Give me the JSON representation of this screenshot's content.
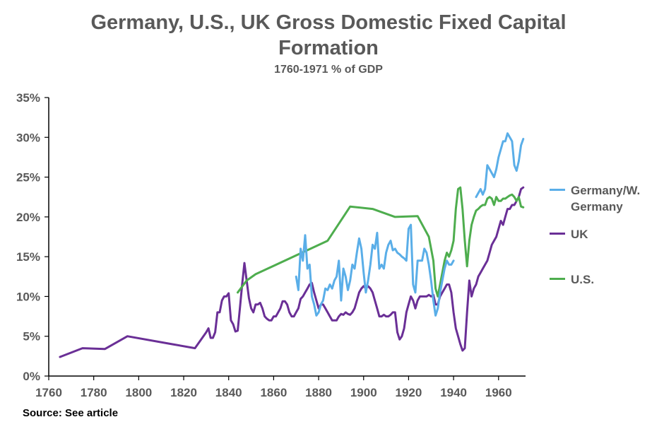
{
  "chart_data": {
    "type": "line",
    "title_line1": "Germany, U.S., UK Gross Domestic Fixed Capital",
    "title_line2": "Formation",
    "subtitle": "1760-1971 % of GDP",
    "xlabel": "",
    "ylabel": "",
    "xlim": [
      1760,
      1972
    ],
    "ylim": [
      0,
      35
    ],
    "x_ticks": [
      1760,
      1780,
      1800,
      1820,
      1840,
      1860,
      1880,
      1900,
      1920,
      1940,
      1960
    ],
    "y_ticks": [
      0,
      5,
      10,
      15,
      20,
      25,
      30,
      35
    ],
    "y_tick_labels": [
      "0%",
      "5%",
      "10%",
      "15%",
      "20%",
      "25%",
      "30%",
      "35%"
    ],
    "legend": [
      {
        "line1": "Germany/W.",
        "line2": "Germany",
        "color": "#5aaee8"
      },
      {
        "line1": "UK",
        "line2": "",
        "color": "#6a2f96"
      },
      {
        "line1": "U.S.",
        "line2": "",
        "color": "#4ead4e"
      }
    ],
    "source": "Source: See article",
    "series": [
      {
        "name": "UK",
        "color": "#6a2f96",
        "points": [
          [
            1765,
            2.4
          ],
          [
            1775,
            3.5
          ],
          [
            1785,
            3.4
          ],
          [
            1795,
            5.0
          ],
          [
            1815,
            4.0
          ],
          [
            1825,
            3.5
          ],
          [
            1830,
            5.5
          ],
          [
            1831,
            6.0
          ],
          [
            1832,
            4.8
          ],
          [
            1833,
            4.8
          ],
          [
            1834,
            5.5
          ],
          [
            1835,
            8.0
          ],
          [
            1836,
            8.0
          ],
          [
            1837,
            9.5
          ],
          [
            1838,
            10.0
          ],
          [
            1839,
            10.0
          ],
          [
            1840,
            10.4
          ],
          [
            1841,
            7.0
          ],
          [
            1842,
            6.5
          ],
          [
            1843,
            5.6
          ],
          [
            1844,
            5.7
          ],
          [
            1845,
            8.5
          ],
          [
            1846,
            11.5
          ],
          [
            1847,
            14.2
          ],
          [
            1848,
            12.0
          ],
          [
            1849,
            9.8
          ],
          [
            1850,
            8.5
          ],
          [
            1851,
            8.0
          ],
          [
            1852,
            9.0
          ],
          [
            1853,
            9.0
          ],
          [
            1854,
            9.2
          ],
          [
            1855,
            8.5
          ],
          [
            1856,
            7.5
          ],
          [
            1857,
            7.2
          ],
          [
            1858,
            7.0
          ],
          [
            1859,
            7.0
          ],
          [
            1860,
            7.5
          ],
          [
            1861,
            7.5
          ],
          [
            1862,
            8.0
          ],
          [
            1863,
            8.5
          ],
          [
            1864,
            9.4
          ],
          [
            1865,
            9.4
          ],
          [
            1866,
            9.0
          ],
          [
            1867,
            8.0
          ],
          [
            1868,
            7.5
          ],
          [
            1869,
            7.5
          ],
          [
            1870,
            8.0
          ],
          [
            1871,
            8.5
          ],
          [
            1872,
            9.7
          ],
          [
            1873,
            10.0
          ],
          [
            1874,
            10.5
          ],
          [
            1875,
            11.0
          ],
          [
            1876,
            11.5
          ],
          [
            1877,
            11.7
          ],
          [
            1878,
            10.5
          ],
          [
            1879,
            9.5
          ],
          [
            1880,
            8.5
          ],
          [
            1881,
            9.0
          ],
          [
            1882,
            9.0
          ],
          [
            1883,
            8.5
          ],
          [
            1884,
            8.0
          ],
          [
            1885,
            7.5
          ],
          [
            1886,
            7.0
          ],
          [
            1887,
            7.0
          ],
          [
            1888,
            7.0
          ],
          [
            1889,
            7.5
          ],
          [
            1890,
            7.8
          ],
          [
            1891,
            7.7
          ],
          [
            1892,
            8.0
          ],
          [
            1893,
            7.8
          ],
          [
            1894,
            7.7
          ],
          [
            1895,
            8.0
          ],
          [
            1896,
            8.5
          ],
          [
            1897,
            9.5
          ],
          [
            1898,
            10.5
          ],
          [
            1899,
            11.0
          ],
          [
            1900,
            11.3
          ],
          [
            1901,
            11.0
          ],
          [
            1902,
            11.3
          ],
          [
            1903,
            11.0
          ],
          [
            1904,
            10.5
          ],
          [
            1905,
            9.5
          ],
          [
            1906,
            8.5
          ],
          [
            1907,
            7.5
          ],
          [
            1908,
            7.5
          ],
          [
            1909,
            7.7
          ],
          [
            1910,
            7.5
          ],
          [
            1911,
            7.5
          ],
          [
            1912,
            7.7
          ],
          [
            1913,
            8.0
          ],
          [
            1914,
            8.0
          ],
          [
            1915,
            5.5
          ],
          [
            1916,
            4.6
          ],
          [
            1917,
            5.0
          ],
          [
            1918,
            6.0
          ],
          [
            1919,
            8.0
          ],
          [
            1920,
            9.0
          ],
          [
            1921,
            10.0
          ],
          [
            1922,
            9.5
          ],
          [
            1923,
            8.5
          ],
          [
            1924,
            9.5
          ],
          [
            1925,
            10.0
          ],
          [
            1926,
            10.0
          ],
          [
            1927,
            10.0
          ],
          [
            1928,
            10.0
          ],
          [
            1929,
            10.2
          ],
          [
            1930,
            10.0
          ],
          [
            1931,
            10.2
          ],
          [
            1932,
            9.0
          ],
          [
            1933,
            9.0
          ],
          [
            1934,
            10.0
          ],
          [
            1935,
            10.5
          ],
          [
            1936,
            11.0
          ],
          [
            1937,
            11.5
          ],
          [
            1938,
            11.5
          ],
          [
            1939,
            10.5
          ],
          [
            1940,
            8.0
          ],
          [
            1941,
            6.0
          ],
          [
            1942,
            5.0
          ],
          [
            1943,
            4.0
          ],
          [
            1944,
            3.2
          ],
          [
            1945,
            3.5
          ],
          [
            1946,
            8.0
          ],
          [
            1947,
            12.0
          ],
          [
            1948,
            10.0
          ],
          [
            1949,
            11.0
          ],
          [
            1950,
            11.5
          ],
          [
            1951,
            12.5
          ],
          [
            1952,
            13.0
          ],
          [
            1953,
            13.5
          ],
          [
            1954,
            14.0
          ],
          [
            1955,
            14.5
          ],
          [
            1956,
            15.5
          ],
          [
            1957,
            16.5
          ],
          [
            1958,
            17.0
          ],
          [
            1959,
            17.5
          ],
          [
            1960,
            18.5
          ],
          [
            1961,
            19.5
          ],
          [
            1962,
            19.0
          ],
          [
            1963,
            20.0
          ],
          [
            1964,
            21.0
          ],
          [
            1965,
            21.0
          ],
          [
            1966,
            21.5
          ],
          [
            1967,
            21.5
          ],
          [
            1968,
            22.0
          ],
          [
            1969,
            22.5
          ],
          [
            1970,
            23.5
          ],
          [
            1971,
            23.7
          ]
        ]
      },
      {
        "name": "U.S.",
        "color": "#4ead4e",
        "points": [
          [
            1844,
            10.5
          ],
          [
            1848,
            12.0
          ],
          [
            1852,
            12.8
          ],
          [
            1884,
            17.0
          ],
          [
            1894,
            21.3
          ],
          [
            1904,
            21.0
          ],
          [
            1914,
            20.0
          ],
          [
            1924,
            20.1
          ],
          [
            1929,
            17.5
          ],
          [
            1931,
            14.5
          ],
          [
            1932,
            11.0
          ],
          [
            1933,
            10.0
          ],
          [
            1934,
            11.5
          ],
          [
            1935,
            13.0
          ],
          [
            1936,
            14.5
          ],
          [
            1937,
            15.5
          ],
          [
            1938,
            15.0
          ],
          [
            1939,
            15.8
          ],
          [
            1940,
            17.0
          ],
          [
            1941,
            21.0
          ],
          [
            1942,
            23.5
          ],
          [
            1943,
            23.7
          ],
          [
            1944,
            21.0
          ],
          [
            1945,
            17.0
          ],
          [
            1946,
            13.8
          ],
          [
            1947,
            17.0
          ],
          [
            1948,
            19.0
          ],
          [
            1949,
            20.0
          ],
          [
            1950,
            20.8
          ],
          [
            1951,
            21.0
          ],
          [
            1952,
            21.3
          ],
          [
            1953,
            21.5
          ],
          [
            1954,
            21.5
          ],
          [
            1955,
            22.3
          ],
          [
            1956,
            22.5
          ],
          [
            1957,
            22.3
          ],
          [
            1958,
            21.5
          ],
          [
            1959,
            22.5
          ],
          [
            1960,
            22.0
          ],
          [
            1961,
            22.0
          ],
          [
            1962,
            22.3
          ],
          [
            1963,
            22.3
          ],
          [
            1964,
            22.5
          ],
          [
            1965,
            22.7
          ],
          [
            1966,
            22.8
          ],
          [
            1967,
            22.5
          ],
          [
            1968,
            22.0
          ],
          [
            1969,
            22.5
          ],
          [
            1970,
            21.3
          ],
          [
            1971,
            21.2
          ]
        ]
      },
      {
        "name": "Germany/W. Germany",
        "color": "#5aaee8",
        "points": [
          [
            1870,
            12.5
          ],
          [
            1871,
            10.8
          ],
          [
            1872,
            16.0
          ],
          [
            1873,
            14.5
          ],
          [
            1874,
            17.7
          ],
          [
            1875,
            13.5
          ],
          [
            1876,
            14.0
          ],
          [
            1877,
            10.0
          ],
          [
            1878,
            9.0
          ],
          [
            1879,
            7.6
          ],
          [
            1880,
            8.0
          ],
          [
            1881,
            9.0
          ],
          [
            1882,
            9.5
          ],
          [
            1883,
            11.0
          ],
          [
            1884,
            10.8
          ],
          [
            1885,
            11.5
          ],
          [
            1886,
            11.0
          ],
          [
            1887,
            12.0
          ],
          [
            1888,
            12.5
          ],
          [
            1889,
            14.5
          ],
          [
            1890,
            9.5
          ],
          [
            1891,
            13.5
          ],
          [
            1892,
            12.5
          ],
          [
            1893,
            10.8
          ],
          [
            1894,
            12.0
          ],
          [
            1895,
            14.0
          ],
          [
            1896,
            13.5
          ],
          [
            1897,
            15.5
          ],
          [
            1898,
            17.3
          ],
          [
            1899,
            16.0
          ],
          [
            1900,
            13.0
          ],
          [
            1901,
            10.5
          ],
          [
            1902,
            12.0
          ],
          [
            1903,
            14.0
          ],
          [
            1904,
            16.5
          ],
          [
            1905,
            16.0
          ],
          [
            1906,
            18.0
          ],
          [
            1907,
            13.5
          ],
          [
            1908,
            14.0
          ],
          [
            1909,
            13.5
          ],
          [
            1910,
            15.5
          ],
          [
            1911,
            16.5
          ],
          [
            1912,
            17.0
          ],
          [
            1913,
            15.8
          ],
          [
            1914,
            16.0
          ],
          [
            1915,
            15.5
          ],
          [
            1916,
            15.3
          ],
          [
            1917,
            15.0
          ],
          [
            1918,
            14.8
          ],
          [
            1919,
            14.5
          ],
          [
            1920,
            18.5
          ],
          [
            1921,
            19.0
          ],
          [
            1922,
            11.5
          ],
          [
            1923,
            10.5
          ],
          [
            1924,
            14.5
          ],
          [
            1925,
            14.5
          ],
          [
            1926,
            14.5
          ],
          [
            1927,
            16.0
          ],
          [
            1928,
            15.5
          ],
          [
            1929,
            14.0
          ],
          [
            1930,
            12.0
          ],
          [
            1931,
            9.5
          ],
          [
            1932,
            7.6
          ],
          [
            1933,
            8.5
          ],
          [
            1934,
            10.5
          ],
          [
            1935,
            12.0
          ],
          [
            1936,
            13.5
          ],
          [
            1937,
            14.5
          ],
          [
            1938,
            14.0
          ],
          [
            1939,
            14.0
          ],
          [
            1940,
            14.5
          ],
          [
            1950,
            22.5
          ],
          [
            1951,
            23.0
          ],
          [
            1952,
            23.5
          ],
          [
            1953,
            22.8
          ],
          [
            1954,
            23.5
          ],
          [
            1955,
            26.5
          ],
          [
            1956,
            26.0
          ],
          [
            1957,
            25.5
          ],
          [
            1958,
            25.0
          ],
          [
            1959,
            26.0
          ],
          [
            1960,
            27.5
          ],
          [
            1961,
            28.5
          ],
          [
            1962,
            29.5
          ],
          [
            1963,
            29.5
          ],
          [
            1964,
            30.5
          ],
          [
            1965,
            30.0
          ],
          [
            1966,
            29.5
          ],
          [
            1967,
            26.5
          ],
          [
            1968,
            25.8
          ],
          [
            1969,
            27.0
          ],
          [
            1970,
            29.0
          ],
          [
            1971,
            29.8
          ]
        ]
      }
    ]
  }
}
